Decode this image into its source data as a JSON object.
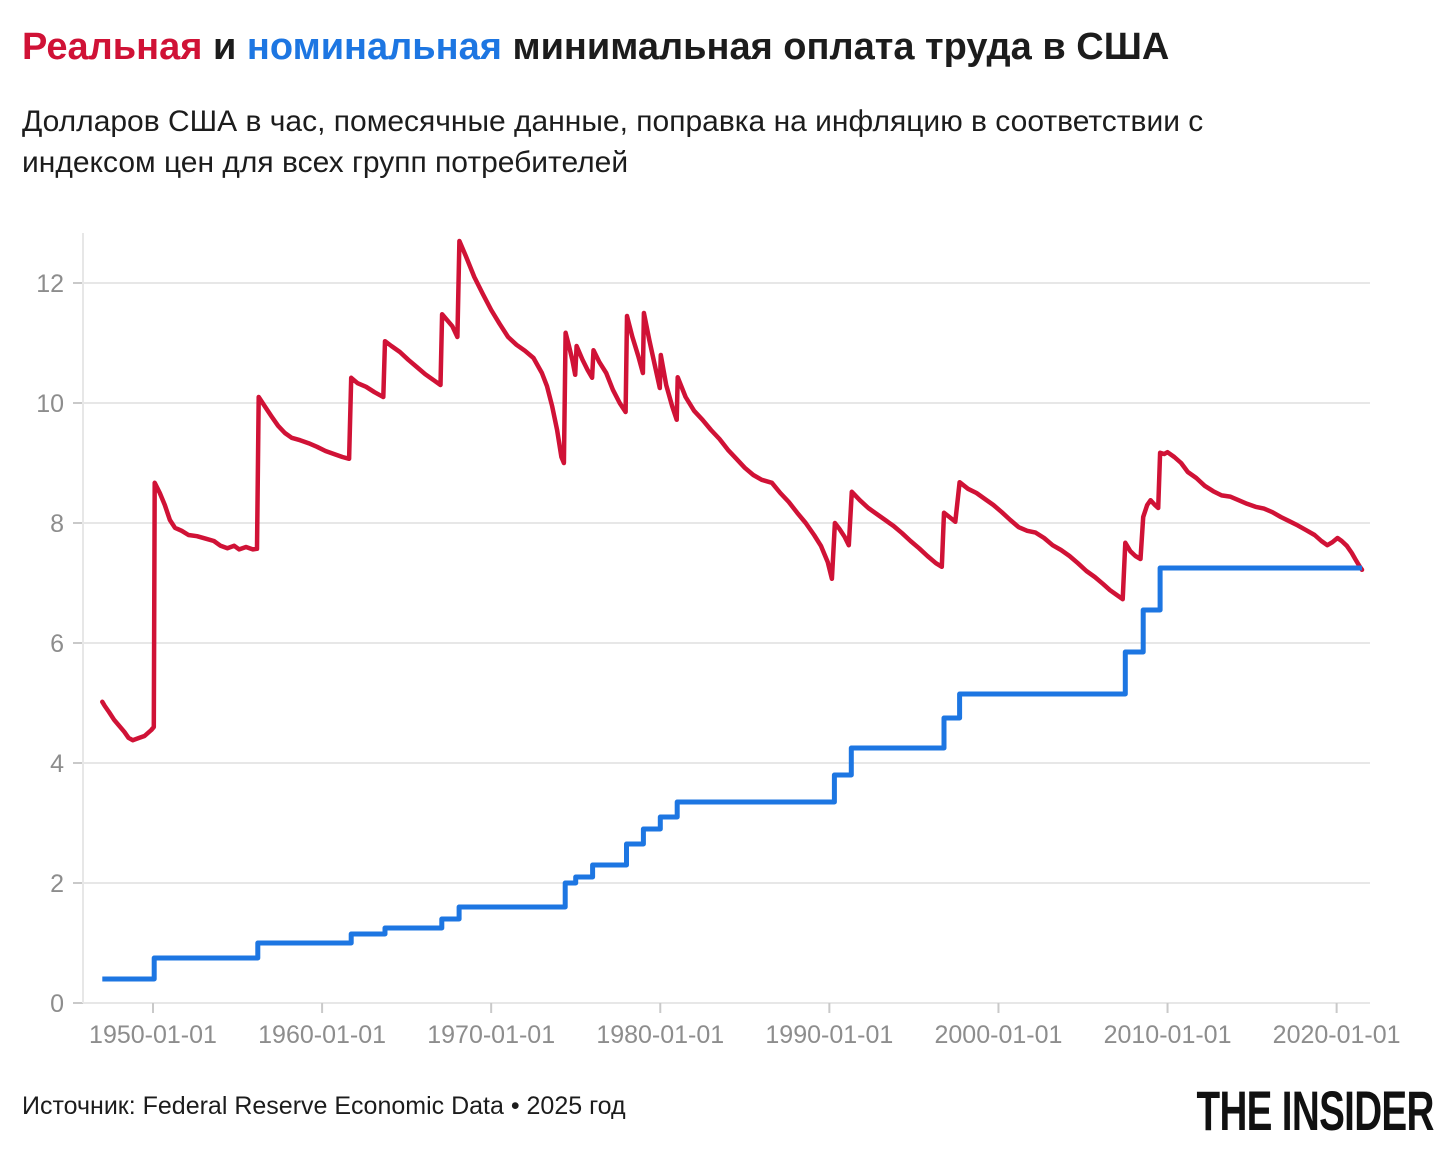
{
  "colors": {
    "red": "#d01236",
    "blue": "#1d76e2",
    "grid": "#e7e7e7",
    "tick": "#c9c9c9",
    "axis_label": "#8d8d8d",
    "text": "#1c1c1c"
  },
  "header": {
    "title_parts": [
      {
        "text": "Реальная",
        "color": "#d01236"
      },
      {
        "text": " и ",
        "color": "#1c1c1c"
      },
      {
        "text": "номинальная",
        "color": "#1d76e2"
      },
      {
        "text": " минимальная оплата труда в США",
        "color": "#1c1c1c"
      }
    ],
    "subtitle_lines": [
      "Долларов США в час, помесячные данные, поправка на инфляцию в соответствии с",
      "индексом цен для всех групп потребителей"
    ]
  },
  "footer": {
    "source": "Источник: Federal Reserve Economic Data • 2025 год",
    "logo": "THE INSIDER"
  },
  "chart_data": {
    "type": "line",
    "title": "Реальная и номинальная минимальная оплата труда в США",
    "subtitle": "Долларов США в час, помесячные данные, поправка на инфляцию в соответствии с индексом цен для всех групп потребителей",
    "xlabel": "",
    "ylabel": "",
    "grid": "horizontal",
    "legend_position": "none",
    "ylim": [
      0,
      12.85
    ],
    "x_range": [
      1947.0,
      2021.5
    ],
    "y_ticks": [
      0,
      2,
      4,
      6,
      8,
      10,
      12
    ],
    "x_tick_years": [
      1950,
      1960,
      1970,
      1980,
      1990,
      2000,
      2010,
      2020
    ],
    "x_tick_labels": [
      "1950-01-01",
      "1960-01-01",
      "1970-01-01",
      "1980-01-01",
      "1990-01-01",
      "2000-01-01",
      "2010-01-01",
      "2020-01-01"
    ],
    "series": [
      {
        "name": "Реальная (с поправкой на инфляцию)",
        "color": "#d01236",
        "style": "line",
        "points": [
          [
            1947.0,
            5.02
          ],
          [
            1947.15,
            4.95
          ],
          [
            1947.4,
            4.85
          ],
          [
            1947.7,
            4.72
          ],
          [
            1948.0,
            4.62
          ],
          [
            1948.3,
            4.52
          ],
          [
            1948.55,
            4.42
          ],
          [
            1948.8,
            4.38
          ],
          [
            1949.0,
            4.4
          ],
          [
            1949.2,
            4.42
          ],
          [
            1949.5,
            4.45
          ],
          [
            1949.7,
            4.5
          ],
          [
            1949.9,
            4.55
          ],
          [
            1950.05,
            4.6
          ],
          [
            1950.1,
            8.67
          ],
          [
            1950.4,
            8.5
          ],
          [
            1950.7,
            8.3
          ],
          [
            1951.0,
            8.05
          ],
          [
            1951.3,
            7.92
          ],
          [
            1951.7,
            7.87
          ],
          [
            1952.1,
            7.8
          ],
          [
            1952.6,
            7.78
          ],
          [
            1953.1,
            7.74
          ],
          [
            1953.6,
            7.7
          ],
          [
            1954.0,
            7.62
          ],
          [
            1954.4,
            7.58
          ],
          [
            1954.8,
            7.62
          ],
          [
            1955.1,
            7.56
          ],
          [
            1955.5,
            7.6
          ],
          [
            1955.9,
            7.56
          ],
          [
            1956.15,
            7.57
          ],
          [
            1956.25,
            10.1
          ],
          [
            1956.6,
            9.95
          ],
          [
            1957.0,
            9.78
          ],
          [
            1957.4,
            9.62
          ],
          [
            1957.8,
            9.5
          ],
          [
            1958.2,
            9.42
          ],
          [
            1958.7,
            9.38
          ],
          [
            1959.2,
            9.33
          ],
          [
            1959.7,
            9.27
          ],
          [
            1960.2,
            9.2
          ],
          [
            1960.7,
            9.15
          ],
          [
            1961.2,
            9.1
          ],
          [
            1961.6,
            9.07
          ],
          [
            1961.72,
            10.42
          ],
          [
            1962.1,
            10.33
          ],
          [
            1962.6,
            10.27
          ],
          [
            1963.1,
            10.18
          ],
          [
            1963.62,
            10.1
          ],
          [
            1963.72,
            11.03
          ],
          [
            1964.1,
            10.95
          ],
          [
            1964.6,
            10.85
          ],
          [
            1965.1,
            10.72
          ],
          [
            1965.6,
            10.6
          ],
          [
            1966.1,
            10.48
          ],
          [
            1966.6,
            10.38
          ],
          [
            1967.0,
            10.3
          ],
          [
            1967.1,
            11.48
          ],
          [
            1967.4,
            11.38
          ],
          [
            1967.7,
            11.28
          ],
          [
            1968.0,
            11.1
          ],
          [
            1968.12,
            12.7
          ],
          [
            1968.5,
            12.45
          ],
          [
            1969.0,
            12.1
          ],
          [
            1969.5,
            11.82
          ],
          [
            1970.0,
            11.55
          ],
          [
            1970.5,
            11.32
          ],
          [
            1971.0,
            11.1
          ],
          [
            1971.5,
            10.97
          ],
          [
            1972.0,
            10.87
          ],
          [
            1972.5,
            10.75
          ],
          [
            1973.0,
            10.5
          ],
          [
            1973.3,
            10.28
          ],
          [
            1973.6,
            9.95
          ],
          [
            1973.9,
            9.55
          ],
          [
            1974.15,
            9.1
          ],
          [
            1974.3,
            9.0
          ],
          [
            1974.4,
            11.17
          ],
          [
            1974.6,
            10.95
          ],
          [
            1974.8,
            10.72
          ],
          [
            1974.97,
            10.47
          ],
          [
            1975.05,
            10.95
          ],
          [
            1975.4,
            10.72
          ],
          [
            1975.7,
            10.55
          ],
          [
            1975.97,
            10.42
          ],
          [
            1976.05,
            10.88
          ],
          [
            1976.4,
            10.68
          ],
          [
            1976.8,
            10.5
          ],
          [
            1977.2,
            10.22
          ],
          [
            1977.6,
            10.0
          ],
          [
            1977.95,
            9.85
          ],
          [
            1978.03,
            11.45
          ],
          [
            1978.35,
            11.1
          ],
          [
            1978.7,
            10.78
          ],
          [
            1978.97,
            10.5
          ],
          [
            1979.03,
            11.5
          ],
          [
            1979.35,
            11.05
          ],
          [
            1979.7,
            10.6
          ],
          [
            1979.97,
            10.25
          ],
          [
            1980.03,
            10.8
          ],
          [
            1980.35,
            10.3
          ],
          [
            1980.7,
            9.95
          ],
          [
            1980.97,
            9.72
          ],
          [
            1981.03,
            10.43
          ],
          [
            1981.5,
            10.1
          ],
          [
            1982.0,
            9.87
          ],
          [
            1982.5,
            9.72
          ],
          [
            1983.0,
            9.55
          ],
          [
            1983.5,
            9.4
          ],
          [
            1984.0,
            9.22
          ],
          [
            1984.5,
            9.07
          ],
          [
            1985.0,
            8.92
          ],
          [
            1985.5,
            8.8
          ],
          [
            1986.0,
            8.72
          ],
          [
            1986.6,
            8.67
          ],
          [
            1987.1,
            8.5
          ],
          [
            1987.6,
            8.35
          ],
          [
            1988.1,
            8.17
          ],
          [
            1988.6,
            8.0
          ],
          [
            1989.1,
            7.8
          ],
          [
            1989.5,
            7.62
          ],
          [
            1989.9,
            7.35
          ],
          [
            1990.15,
            7.07
          ],
          [
            1990.33,
            8.0
          ],
          [
            1990.6,
            7.9
          ],
          [
            1990.9,
            7.77
          ],
          [
            1991.15,
            7.63
          ],
          [
            1991.33,
            8.52
          ],
          [
            1991.8,
            8.38
          ],
          [
            1992.3,
            8.25
          ],
          [
            1992.8,
            8.15
          ],
          [
            1993.3,
            8.05
          ],
          [
            1993.8,
            7.95
          ],
          [
            1994.3,
            7.83
          ],
          [
            1994.8,
            7.7
          ],
          [
            1995.3,
            7.58
          ],
          [
            1995.8,
            7.45
          ],
          [
            1996.3,
            7.33
          ],
          [
            1996.65,
            7.27
          ],
          [
            1996.78,
            8.17
          ],
          [
            1997.1,
            8.1
          ],
          [
            1997.45,
            8.02
          ],
          [
            1997.7,
            8.68
          ],
          [
            1998.2,
            8.57
          ],
          [
            1998.7,
            8.5
          ],
          [
            1999.2,
            8.4
          ],
          [
            1999.7,
            8.3
          ],
          [
            2000.2,
            8.18
          ],
          [
            2000.7,
            8.05
          ],
          [
            2001.2,
            7.93
          ],
          [
            2001.7,
            7.87
          ],
          [
            2002.2,
            7.84
          ],
          [
            2002.7,
            7.75
          ],
          [
            2003.2,
            7.63
          ],
          [
            2003.7,
            7.55
          ],
          [
            2004.2,
            7.45
          ],
          [
            2004.7,
            7.33
          ],
          [
            2005.2,
            7.2
          ],
          [
            2005.7,
            7.1
          ],
          [
            2006.2,
            6.98
          ],
          [
            2006.6,
            6.88
          ],
          [
            2007.0,
            6.8
          ],
          [
            2007.35,
            6.73
          ],
          [
            2007.5,
            7.67
          ],
          [
            2007.8,
            7.53
          ],
          [
            2008.1,
            7.45
          ],
          [
            2008.4,
            7.4
          ],
          [
            2008.56,
            8.1
          ],
          [
            2008.8,
            8.3
          ],
          [
            2009.0,
            8.38
          ],
          [
            2009.25,
            8.3
          ],
          [
            2009.45,
            8.25
          ],
          [
            2009.56,
            9.17
          ],
          [
            2009.8,
            9.15
          ],
          [
            2010.0,
            9.18
          ],
          [
            2010.4,
            9.1
          ],
          [
            2010.8,
            9.0
          ],
          [
            2011.2,
            8.85
          ],
          [
            2011.7,
            8.75
          ],
          [
            2012.2,
            8.62
          ],
          [
            2012.7,
            8.53
          ],
          [
            2013.2,
            8.46
          ],
          [
            2013.7,
            8.44
          ],
          [
            2014.2,
            8.38
          ],
          [
            2014.7,
            8.32
          ],
          [
            2015.2,
            8.27
          ],
          [
            2015.7,
            8.24
          ],
          [
            2016.2,
            8.18
          ],
          [
            2016.7,
            8.1
          ],
          [
            2017.2,
            8.03
          ],
          [
            2017.7,
            7.96
          ],
          [
            2018.2,
            7.88
          ],
          [
            2018.7,
            7.8
          ],
          [
            2019.1,
            7.7
          ],
          [
            2019.45,
            7.63
          ],
          [
            2019.75,
            7.68
          ],
          [
            2020.05,
            7.75
          ],
          [
            2020.3,
            7.7
          ],
          [
            2020.6,
            7.62
          ],
          [
            2020.9,
            7.5
          ],
          [
            2021.1,
            7.4
          ],
          [
            2021.35,
            7.28
          ],
          [
            2021.5,
            7.22
          ]
        ]
      },
      {
        "name": "Номинальная",
        "color": "#1d76e2",
        "style": "step",
        "points": [
          [
            1947.0,
            0.4
          ],
          [
            1950.07,
            0.75
          ],
          [
            1956.2,
            1.0
          ],
          [
            1961.72,
            1.15
          ],
          [
            1963.72,
            1.25
          ],
          [
            1967.08,
            1.4
          ],
          [
            1968.1,
            1.6
          ],
          [
            1974.38,
            2.0
          ],
          [
            1975.0,
            2.1
          ],
          [
            1976.0,
            2.3
          ],
          [
            1978.0,
            2.65
          ],
          [
            1979.0,
            2.9
          ],
          [
            1980.0,
            3.1
          ],
          [
            1981.0,
            3.35
          ],
          [
            1990.3,
            3.8
          ],
          [
            1991.3,
            4.25
          ],
          [
            1996.78,
            4.75
          ],
          [
            1997.7,
            5.15
          ],
          [
            2007.5,
            5.85
          ],
          [
            2008.56,
            6.55
          ],
          [
            2009.56,
            7.25
          ]
        ]
      }
    ]
  }
}
